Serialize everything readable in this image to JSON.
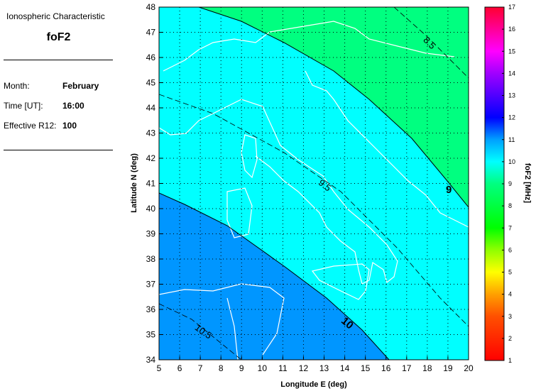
{
  "panel": {
    "subtitle": "Ionospheric Characteristic",
    "title": "foF2",
    "month_label": "Month:",
    "month_value": "February",
    "time_label": "Time [UT]:",
    "time_value": "16:00",
    "r12_label": "Effective R12:",
    "r12_value": "100"
  },
  "map": {
    "xlabel": "Longitude E (deg)",
    "ylabel": "Latitude N (deg)",
    "lon_range": [
      5,
      20
    ],
    "lat_range": [
      34,
      48
    ],
    "lon_ticks": [
      "5",
      "6",
      "7",
      "8",
      "9",
      "10",
      "11",
      "12",
      "13",
      "14",
      "15",
      "16",
      "17",
      "18",
      "19",
      "20"
    ],
    "lat_ticks": [
      "34",
      "35",
      "36",
      "37",
      "38",
      "39",
      "40",
      "41",
      "42",
      "43",
      "44",
      "45",
      "46",
      "47",
      "48"
    ],
    "grid": true,
    "contour_labels": {
      "c85": "8.5",
      "c9": "9",
      "c95": "9.5",
      "c10": "10",
      "c105": "10.5"
    },
    "region_colors": {
      "above_10": "#0096ff",
      "between_9_10": "#00ffff",
      "below_9": "#00ff80"
    },
    "coastline_color": "#ffffff"
  },
  "colorbar": {
    "label": "foF2 [MHz]",
    "ticks": [
      "1",
      "2",
      "3",
      "4",
      "5",
      "6",
      "7",
      "8",
      "9",
      "10",
      "11",
      "12",
      "13",
      "14",
      "15",
      "16",
      "17"
    ],
    "range": [
      1,
      17
    ]
  }
}
